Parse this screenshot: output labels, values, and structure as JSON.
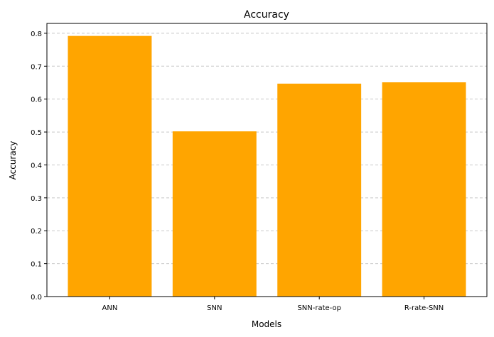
{
  "chart_data": {
    "type": "bar",
    "title": "Accuracy",
    "xlabel": "Models",
    "ylabel": "Accuracy",
    "categories": [
      "ANN",
      "SNN",
      "SNN-rate-op",
      "R-rate-SNN"
    ],
    "values": [
      0.792,
      0.502,
      0.647,
      0.651
    ],
    "ylim": [
      0,
      0.83
    ],
    "yticks": [
      "0.0",
      "0.1",
      "0.2",
      "0.3",
      "0.4",
      "0.5",
      "0.6",
      "0.7",
      "0.8"
    ],
    "bar_color": "#ffa500",
    "grid": "y-axis dashed",
    "legend": "none"
  }
}
